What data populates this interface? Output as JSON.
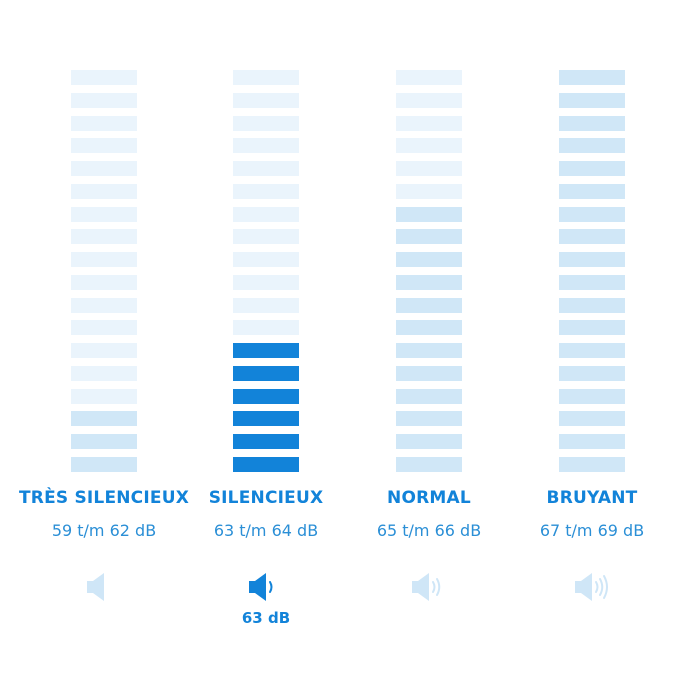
{
  "colors": {
    "accent": "#1283d9",
    "spec_text": "#2b8fd6",
    "segment_lit": "#1283d9",
    "segment_tint": "#d0e7f7",
    "segment_faint": "#eaf4fc",
    "icon_faint": "#cfe6f7"
  },
  "segments_per_column": 18,
  "levels": [
    {
      "label": "TRÈS SILENCIEUX",
      "spec": "59 t/m 62 dB",
      "tinted_segments": 3,
      "highlighted_segments": 0,
      "icon": "speaker-muted-icon",
      "selected": false,
      "reading": ""
    },
    {
      "label": "SILENCIEUX",
      "spec": "63 t/m 64 dB",
      "tinted_segments": 0,
      "highlighted_segments": 6,
      "icon": "speaker-low-icon",
      "selected": true,
      "reading": "63 dB"
    },
    {
      "label": "NORMAL",
      "spec": "65 t/m 66 dB",
      "tinted_segments": 12,
      "highlighted_segments": 0,
      "icon": "speaker-medium-icon",
      "selected": false,
      "reading": ""
    },
    {
      "label": "BRUYANT",
      "spec": "67 t/m 69 dB",
      "tinted_segments": 18,
      "highlighted_segments": 0,
      "icon": "speaker-high-icon",
      "selected": false,
      "reading": ""
    }
  ]
}
